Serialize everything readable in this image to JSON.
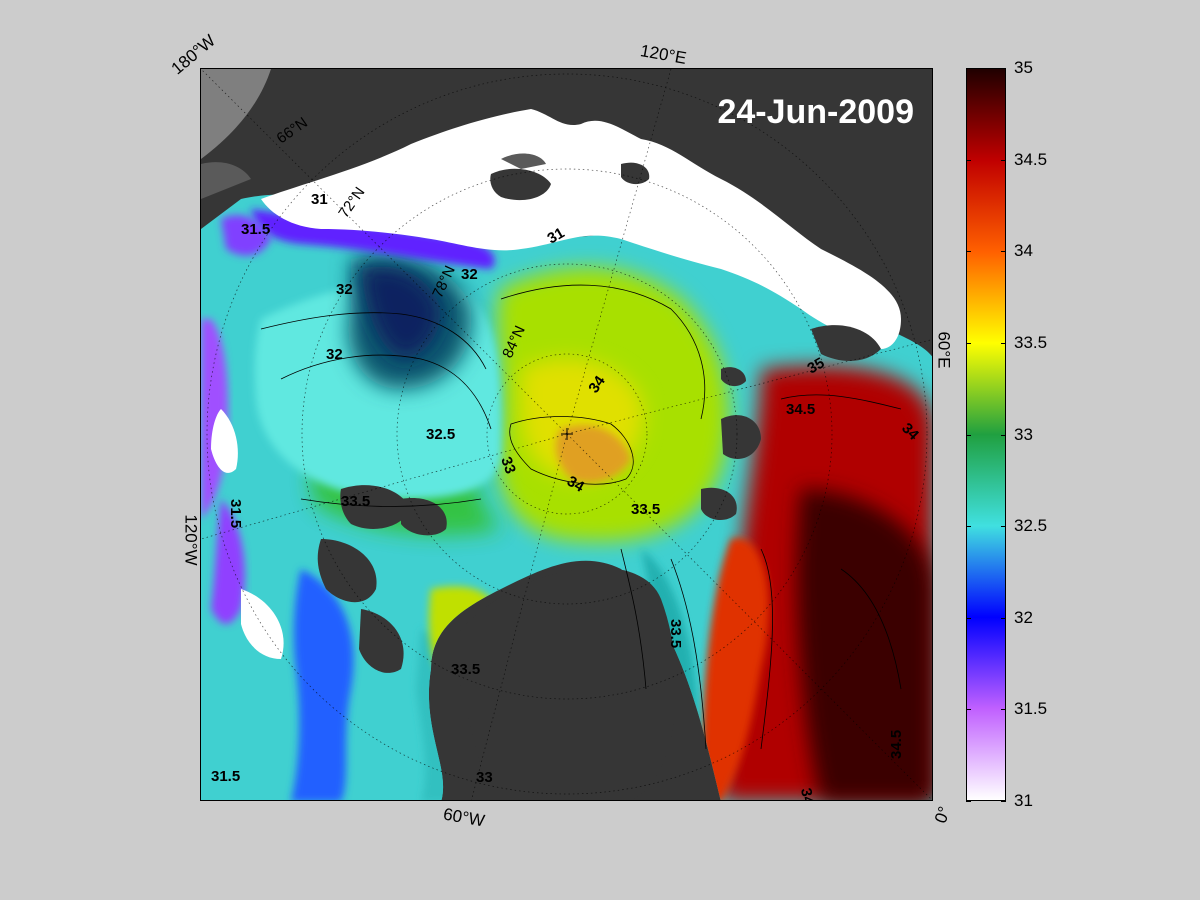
{
  "map": {
    "date": "24-Jun-2009",
    "edge_labels": {
      "top_left": "180°W",
      "top": "120°E",
      "right": "60°E",
      "left": "120°W",
      "bottom": "60°W",
      "bottom_right": "0°"
    },
    "latitude_labels": [
      "66°N",
      "72°N",
      "78°N",
      "84°N"
    ],
    "contour_labels": [
      "31",
      "31.5",
      "32",
      "32.5",
      "33",
      "33.5",
      "34",
      "34.5",
      "35"
    ],
    "colors": {
      "land": "#363636",
      "ice": "#ffffff",
      "background": "#cccccc"
    }
  },
  "colorbar": {
    "min": 31,
    "max": 35,
    "ticks": [
      "35",
      "34.5",
      "34",
      "33.5",
      "33",
      "32.5",
      "32",
      "31.5",
      "31"
    ],
    "stops": [
      "#ffffff",
      "#c060ff",
      "#0000ff",
      "#40e0e0",
      "#20a040",
      "#ffff00",
      "#ff6000",
      "#c00000",
      "#200000"
    ]
  }
}
